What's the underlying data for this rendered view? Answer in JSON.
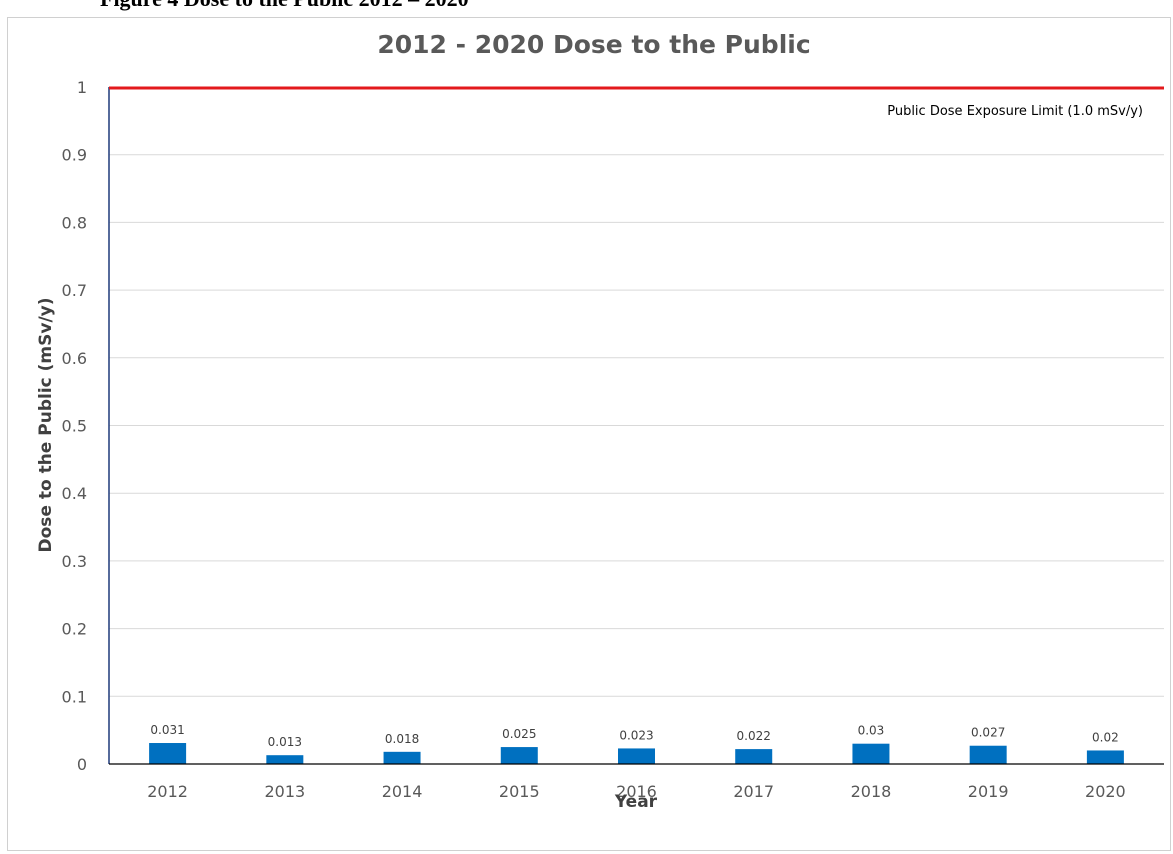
{
  "document": {
    "caption": "Figure 4 Dose to the Public 2012 – 2020"
  },
  "chart_data": {
    "type": "bar",
    "title": "2012 - 2020 Dose to the Public",
    "xlabel": "Year",
    "ylabel": "Dose to the Public (mSv/y)",
    "categories": [
      "2012",
      "2013",
      "2014",
      "2015",
      "2016",
      "2017",
      "2018",
      "2019",
      "2020"
    ],
    "values": [
      0.031,
      0.013,
      0.018,
      0.025,
      0.023,
      0.022,
      0.03,
      0.027,
      0.02
    ],
    "data_labels": [
      "0.031",
      "0.013",
      "0.018",
      "0.025",
      "0.023",
      "0.022",
      "0.03",
      "0.027",
      "0.02"
    ],
    "ylim": [
      0,
      1
    ],
    "yticks": [
      "0",
      "0.1",
      "0.2",
      "0.3",
      "0.4",
      "0.5",
      "0.6",
      "0.7",
      "0.8",
      "0.9",
      "1"
    ],
    "grid": true,
    "reference_line": {
      "value": 1.0,
      "label": "Public Dose Exposure Limit (1.0 mSv/y)",
      "color": "#e31a1c"
    },
    "colors": {
      "bar": "#0070c0",
      "gridline": "#d9d9d9",
      "y_axis": "#1f3a7a"
    }
  }
}
